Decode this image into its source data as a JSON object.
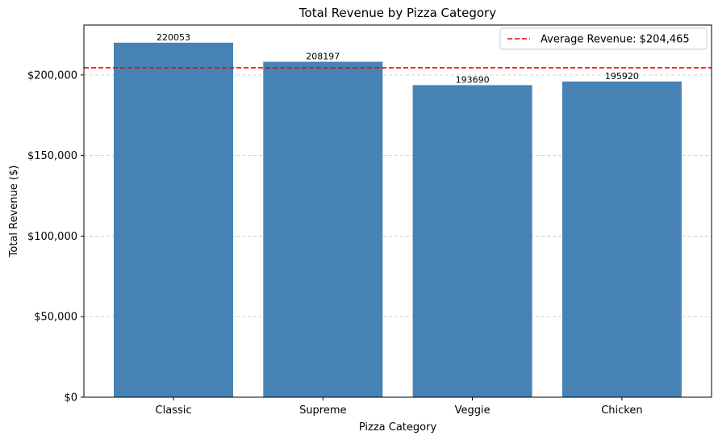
{
  "chart_data": {
    "type": "bar",
    "title": "Total Revenue by Pizza Category",
    "xlabel": "Pizza Category",
    "ylabel": "Total Revenue ($)",
    "categories": [
      "Classic",
      "Supreme",
      "Veggie",
      "Chicken"
    ],
    "values": [
      220053,
      208197,
      193690,
      195920
    ],
    "data_labels": [
      "220053",
      "208197",
      "193690",
      "195920"
    ],
    "ylim": [
      0,
      231000
    ],
    "yticks": [
      0,
      50000,
      100000,
      150000,
      200000
    ],
    "ytick_labels": [
      "$0",
      "$50,000",
      "$100,000",
      "$150,000",
      "$200,000"
    ],
    "grid": "y-dashed",
    "bar_color": "#4682b4",
    "reference_line": {
      "value": 204465,
      "label": "Average Revenue: $204,465",
      "color": "#ff0000",
      "style": "dashed"
    },
    "legend_position": "top-right"
  }
}
